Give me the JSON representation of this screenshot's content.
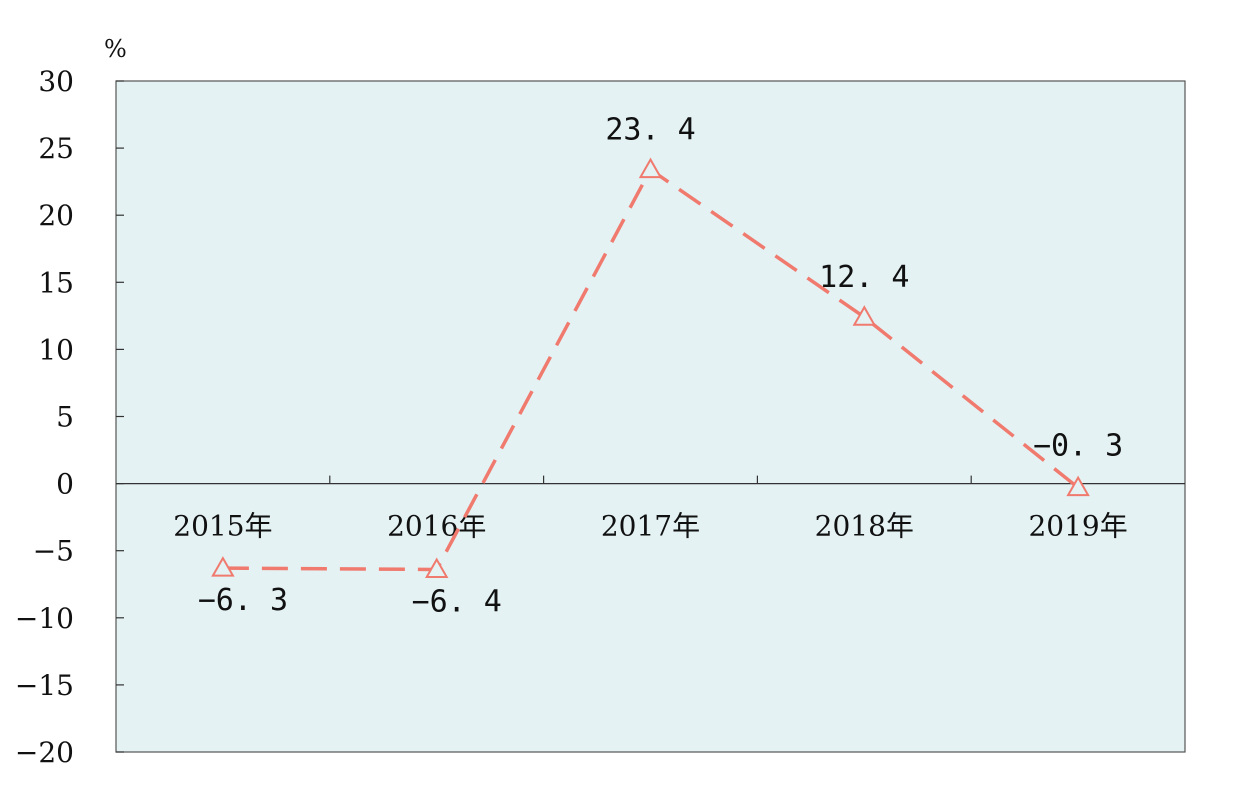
{
  "chart_data": {
    "type": "line",
    "unit": "%",
    "categories": [
      "2015年",
      "2016年",
      "2017年",
      "2018年",
      "2019年"
    ],
    "series": [
      {
        "values": [
          -6.3,
          -6.4,
          23.4,
          12.4,
          -0.3
        ],
        "labels": [
          "-6. 3",
          "-6. 4",
          "23. 4",
          "12. 4",
          "-0. 3"
        ]
      }
    ],
    "yticks": [
      "30",
      "25",
      "20",
      "15",
      "10",
      "5",
      "0",
      "-5",
      "-10",
      "-15",
      "-20"
    ],
    "ylim": [
      -20,
      30
    ],
    "colors": {
      "line": "#F07A6E",
      "plot_background": "#E4F2F4",
      "axis": "#333333"
    },
    "grid": false,
    "marker": "open-triangle",
    "line_style": "dashed"
  }
}
